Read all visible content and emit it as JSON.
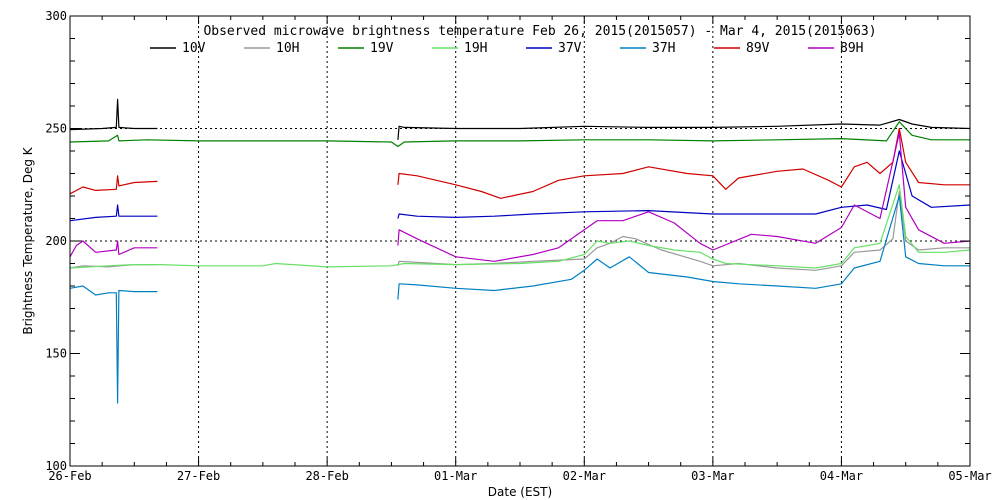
{
  "chart_data": {
    "type": "line",
    "title": "Observed microwave brightness temperature Feb 26, 2015(2015057) - Mar  4, 2015(2015063)",
    "xlabel": "Date (EST)",
    "ylabel": "Brightness Temperature, Deg K",
    "ylim": [
      100,
      300
    ],
    "yticks": [
      100,
      150,
      200,
      250,
      300
    ],
    "xlim": [
      0,
      7
    ],
    "xtick_labels": [
      "26-Feb",
      "27-Feb",
      "28-Feb",
      "01-Mar",
      "02-Mar",
      "03-Mar",
      "04-Mar",
      "05-Mar"
    ],
    "reference_lines": [
      200,
      250
    ],
    "grid": true,
    "legend_position": "top",
    "series": [
      {
        "name": "10V",
        "color": "#000000",
        "points": [
          [
            0,
            249.5
          ],
          [
            0.25,
            250
          ],
          [
            0.36,
            250.5
          ],
          [
            0.37,
            263
          ],
          [
            0.38,
            250.5
          ],
          [
            0.5,
            250
          ],
          [
            0.68,
            250
          ],
          null,
          [
            2.55,
            245
          ],
          [
            2.56,
            251
          ],
          [
            2.6,
            250.5
          ],
          [
            3,
            250
          ],
          [
            3.5,
            250
          ],
          [
            4,
            251
          ],
          [
            4.5,
            250.5
          ],
          [
            5,
            250.5
          ],
          [
            5.5,
            251
          ],
          [
            6,
            252
          ],
          [
            6.3,
            251.5
          ],
          [
            6.45,
            254
          ],
          [
            6.55,
            252
          ],
          [
            6.7,
            250.5
          ],
          [
            7,
            250
          ]
        ]
      },
      {
        "name": "10H",
        "color": "#999999",
        "points": [
          [
            0,
            188
          ],
          [
            0.1,
            189
          ],
          [
            0.3,
            188.5
          ],
          [
            0.5,
            189.5
          ],
          [
            0.68,
            189.5
          ],
          null,
          [
            2.55,
            189
          ],
          [
            2.56,
            191
          ],
          [
            2.7,
            190.5
          ],
          [
            3,
            189.5
          ],
          [
            3.3,
            190
          ],
          [
            3.6,
            191
          ],
          [
            4,
            192
          ],
          [
            4.1,
            197
          ],
          [
            4.2,
            199
          ],
          [
            4.3,
            202
          ],
          [
            4.4,
            201
          ],
          [
            4.6,
            196
          ],
          [
            4.9,
            191
          ],
          [
            5,
            189
          ],
          [
            5.2,
            190
          ],
          [
            5.5,
            188
          ],
          [
            5.8,
            187
          ],
          [
            6,
            189
          ],
          [
            6.1,
            195
          ],
          [
            6.3,
            196
          ],
          [
            6.4,
            201
          ],
          [
            6.45,
            222
          ],
          [
            6.5,
            200
          ],
          [
            6.6,
            196
          ],
          [
            6.8,
            197
          ],
          [
            7,
            197
          ]
        ]
      },
      {
        "name": "19V",
        "color": "#008000",
        "points": [
          [
            0,
            244
          ],
          [
            0.3,
            244.5
          ],
          [
            0.37,
            247
          ],
          [
            0.38,
            244.5
          ],
          [
            0.6,
            245
          ],
          [
            1,
            244.5
          ],
          [
            1.5,
            244.5
          ],
          [
            2,
            244.5
          ],
          [
            2.5,
            244
          ],
          [
            2.55,
            242
          ],
          [
            2.6,
            244
          ],
          [
            3,
            244.5
          ],
          [
            3.5,
            244.5
          ],
          [
            4,
            245
          ],
          [
            4.5,
            245
          ],
          [
            5,
            244.5
          ],
          [
            5.5,
            245
          ],
          [
            6,
            245.5
          ],
          [
            6.35,
            244.5
          ],
          [
            6.45,
            253
          ],
          [
            6.55,
            247
          ],
          [
            6.7,
            245
          ],
          [
            7,
            245
          ]
        ]
      },
      {
        "name": "19H",
        "color": "#66e066",
        "points": [
          [
            0,
            188
          ],
          [
            0.3,
            189
          ],
          [
            0.5,
            189.5
          ],
          [
            0.7,
            189.5
          ],
          [
            1,
            189
          ],
          [
            1.5,
            189
          ],
          [
            1.6,
            190
          ],
          [
            2,
            188.5
          ],
          [
            2.5,
            189
          ],
          [
            2.6,
            190
          ],
          [
            3,
            189.5
          ],
          [
            3.5,
            190
          ],
          [
            3.8,
            191
          ],
          [
            4,
            194
          ],
          [
            4.1,
            200
          ],
          [
            4.2,
            199
          ],
          [
            4.35,
            200
          ],
          [
            4.5,
            198
          ],
          [
            4.7,
            196
          ],
          [
            4.9,
            195
          ],
          [
            5,
            192
          ],
          [
            5.1,
            190
          ],
          [
            5.5,
            189
          ],
          [
            5.8,
            188
          ],
          [
            6,
            190
          ],
          [
            6.1,
            197
          ],
          [
            6.3,
            199
          ],
          [
            6.45,
            225
          ],
          [
            6.5,
            202
          ],
          [
            6.6,
            195
          ],
          [
            6.8,
            195
          ],
          [
            7,
            196
          ]
        ]
      },
      {
        "name": "37V",
        "color": "#0000c0",
        "points": [
          [
            0,
            209
          ],
          [
            0.2,
            210.5
          ],
          [
            0.36,
            211
          ],
          [
            0.37,
            216
          ],
          [
            0.38,
            211
          ],
          [
            0.5,
            211
          ],
          [
            0.68,
            211
          ],
          null,
          [
            2.55,
            210
          ],
          [
            2.56,
            212
          ],
          [
            2.7,
            211
          ],
          [
            3,
            210.5
          ],
          [
            3.3,
            211
          ],
          [
            3.6,
            212
          ],
          [
            4,
            213
          ],
          [
            4.5,
            213.5
          ],
          [
            5,
            212
          ],
          [
            5.5,
            212
          ],
          [
            5.8,
            212
          ],
          [
            6,
            215
          ],
          [
            6.2,
            216
          ],
          [
            6.35,
            214
          ],
          [
            6.45,
            240
          ],
          [
            6.55,
            220
          ],
          [
            6.7,
            215
          ],
          [
            7,
            216
          ]
        ]
      },
      {
        "name": "37H",
        "color": "#0080c0",
        "points": [
          [
            0,
            179
          ],
          [
            0.1,
            180
          ],
          [
            0.2,
            176
          ],
          [
            0.3,
            177
          ],
          [
            0.36,
            177
          ],
          [
            0.37,
            128
          ],
          [
            0.38,
            178
          ],
          [
            0.5,
            177.5
          ],
          [
            0.68,
            177.5
          ],
          null,
          [
            2.55,
            174
          ],
          [
            2.56,
            181
          ],
          [
            2.7,
            180.5
          ],
          [
            3,
            179
          ],
          [
            3.3,
            178
          ],
          [
            3.6,
            180
          ],
          [
            3.9,
            183
          ],
          [
            4,
            187
          ],
          [
            4.1,
            192
          ],
          [
            4.2,
            188
          ],
          [
            4.35,
            193
          ],
          [
            4.5,
            186
          ],
          [
            4.8,
            184
          ],
          [
            5,
            182
          ],
          [
            5.2,
            181
          ],
          [
            5.5,
            180
          ],
          [
            5.8,
            179
          ],
          [
            6,
            181
          ],
          [
            6.1,
            188
          ],
          [
            6.3,
            191
          ],
          [
            6.45,
            220
          ],
          [
            6.5,
            193
          ],
          [
            6.6,
            190
          ],
          [
            6.8,
            189
          ],
          [
            7,
            189
          ]
        ]
      },
      {
        "name": "89V",
        "color": "#d00000",
        "points": [
          [
            0,
            221
          ],
          [
            0.1,
            224
          ],
          [
            0.2,
            222.5
          ],
          [
            0.36,
            223
          ],
          [
            0.37,
            229
          ],
          [
            0.38,
            224.5
          ],
          [
            0.5,
            226
          ],
          [
            0.68,
            226.5
          ],
          null,
          [
            2.55,
            225
          ],
          [
            2.56,
            230
          ],
          [
            2.7,
            229
          ],
          [
            3,
            225
          ],
          [
            3.2,
            222
          ],
          [
            3.35,
            219
          ],
          [
            3.6,
            222
          ],
          [
            3.8,
            227
          ],
          [
            4,
            229
          ],
          [
            4.3,
            230
          ],
          [
            4.5,
            233
          ],
          [
            4.8,
            230
          ],
          [
            5,
            229
          ],
          [
            5.1,
            223
          ],
          [
            5.2,
            228
          ],
          [
            5.5,
            231
          ],
          [
            5.7,
            232
          ],
          [
            5.9,
            227
          ],
          [
            6,
            224
          ],
          [
            6.1,
            233
          ],
          [
            6.2,
            235
          ],
          [
            6.3,
            230
          ],
          [
            6.4,
            235
          ],
          [
            6.45,
            250
          ],
          [
            6.5,
            235
          ],
          [
            6.6,
            226
          ],
          [
            6.8,
            225
          ],
          [
            7,
            225
          ]
        ]
      },
      {
        "name": "89H",
        "color": "#b000c0",
        "points": [
          [
            0,
            193
          ],
          [
            0.05,
            198
          ],
          [
            0.1,
            200
          ],
          [
            0.2,
            195
          ],
          [
            0.36,
            196
          ],
          [
            0.37,
            200
          ],
          [
            0.38,
            194
          ],
          [
            0.5,
            197
          ],
          [
            0.68,
            197
          ],
          null,
          [
            2.55,
            198
          ],
          [
            2.56,
            205
          ],
          [
            2.7,
            201
          ],
          [
            3,
            193
          ],
          [
            3.3,
            191
          ],
          [
            3.6,
            194
          ],
          [
            3.8,
            197
          ],
          [
            4,
            205
          ],
          [
            4.1,
            209
          ],
          [
            4.3,
            209
          ],
          [
            4.5,
            213
          ],
          [
            4.7,
            208
          ],
          [
            4.9,
            199
          ],
          [
            5,
            196
          ],
          [
            5.3,
            203
          ],
          [
            5.5,
            202
          ],
          [
            5.8,
            199
          ],
          [
            6,
            206
          ],
          [
            6.1,
            216
          ],
          [
            6.3,
            210
          ],
          [
            6.45,
            248
          ],
          [
            6.5,
            215
          ],
          [
            6.6,
            205
          ],
          [
            6.8,
            199
          ],
          [
            7,
            200
          ]
        ]
      }
    ]
  }
}
